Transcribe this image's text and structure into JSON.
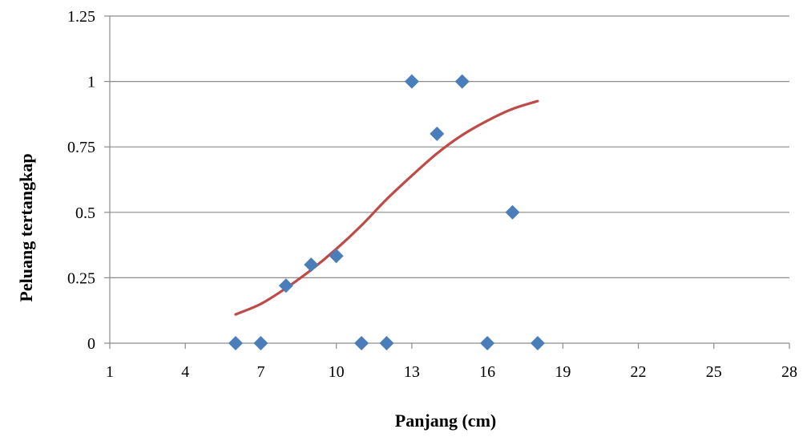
{
  "chart_data": {
    "type": "scatter",
    "xlabel": "Panjang (cm)",
    "ylabel": "Peluang  tertangkap",
    "xlim": [
      1,
      28
    ],
    "ylim": [
      0,
      1.25
    ],
    "x_ticks": [
      "1",
      "4",
      "7",
      "10",
      "13",
      "16",
      "19",
      "22",
      "25",
      "28"
    ],
    "y_ticks": [
      "0",
      "0.25",
      "0.5",
      "0.75",
      "1",
      "1.25"
    ],
    "grid": "horizontal",
    "series": [
      {
        "kind": "points",
        "marker": "diamond",
        "color": "#4a7ebb",
        "points": [
          {
            "x": 6,
            "y": 0
          },
          {
            "x": 7,
            "y": 0
          },
          {
            "x": 8,
            "y": 0.22
          },
          {
            "x": 9,
            "y": 0.3
          },
          {
            "x": 10,
            "y": 0.333
          },
          {
            "x": 11,
            "y": 0
          },
          {
            "x": 12,
            "y": 0
          },
          {
            "x": 13,
            "y": 1
          },
          {
            "x": 14,
            "y": 0.8
          },
          {
            "x": 15,
            "y": 1
          },
          {
            "x": 16,
            "y": 0
          },
          {
            "x": 17,
            "y": 0.5
          },
          {
            "x": 18,
            "y": 0
          }
        ]
      },
      {
        "kind": "curve",
        "color": "#be4b48",
        "points": [
          {
            "x": 6,
            "y": 0.11
          },
          {
            "x": 7,
            "y": 0.15
          },
          {
            "x": 8,
            "y": 0.21
          },
          {
            "x": 9,
            "y": 0.28
          },
          {
            "x": 10,
            "y": 0.36
          },
          {
            "x": 11,
            "y": 0.45
          },
          {
            "x": 12,
            "y": 0.55
          },
          {
            "x": 13,
            "y": 0.64
          },
          {
            "x": 14,
            "y": 0.725
          },
          {
            "x": 15,
            "y": 0.795
          },
          {
            "x": 16,
            "y": 0.85
          },
          {
            "x": 17,
            "y": 0.895
          },
          {
            "x": 18,
            "y": 0.925
          }
        ]
      }
    ]
  }
}
